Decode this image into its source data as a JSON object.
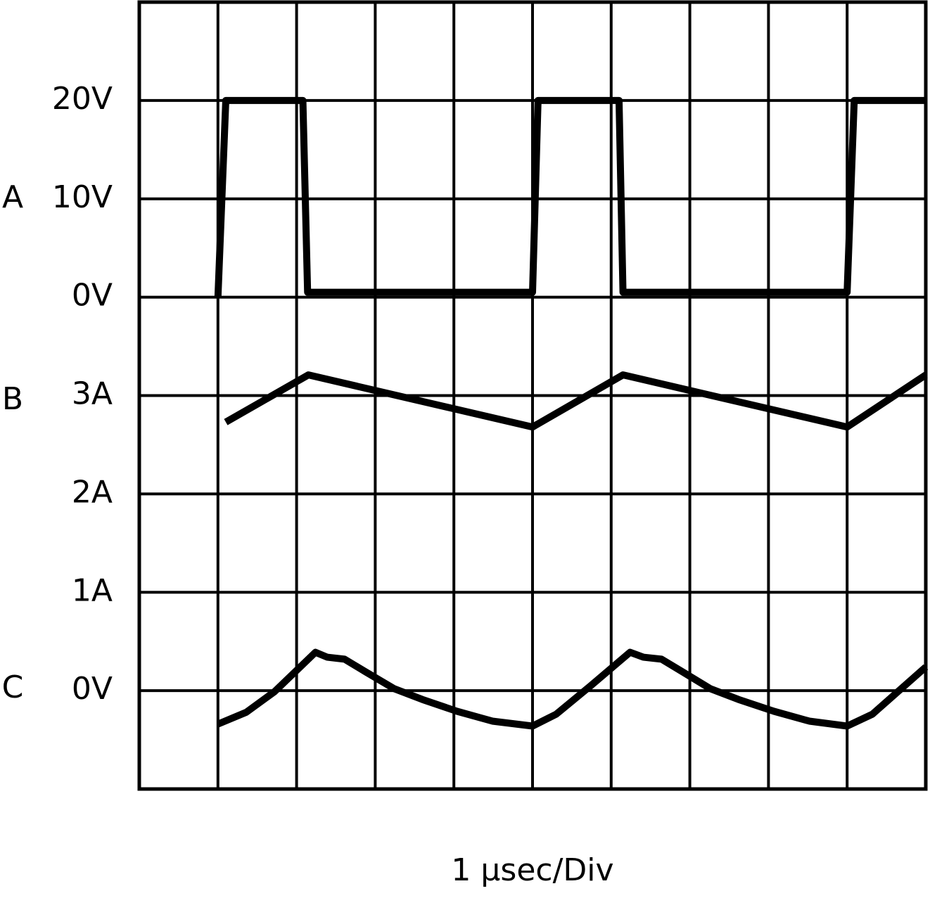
{
  "chart_data": {
    "type": "line",
    "xlabel": "1 μsec/Div",
    "xlim": [
      0,
      10
    ],
    "xticks": [
      0,
      1,
      2,
      3,
      4,
      5,
      6,
      7,
      8,
      9,
      10
    ],
    "ylim": [
      0,
      8
    ],
    "yticks": [
      {
        "value": 7,
        "label": "20V"
      },
      {
        "value": 6,
        "label": "10V"
      },
      {
        "value": 5,
        "label": "0V"
      },
      {
        "value": 4,
        "label": "3A"
      },
      {
        "value": 3,
        "label": "2A"
      },
      {
        "value": 2,
        "label": "1A"
      },
      {
        "value": 1,
        "label": "0V"
      }
    ],
    "grid": true,
    "series": [
      {
        "name": "A",
        "color": "#000000",
        "x": [
          1.0,
          1.1,
          2.08,
          2.14,
          5.0,
          5.07,
          6.1,
          6.15,
          9.0,
          9.09,
          10.0
        ],
        "values": [
          5.0,
          7.0,
          7.0,
          5.05,
          5.05,
          7.0,
          7.0,
          5.05,
          5.05,
          7.0,
          7.0
        ]
      },
      {
        "name": "B",
        "color": "#000000",
        "x": [
          1.1,
          2.15,
          5.0,
          6.15,
          9.0,
          10.0
        ],
        "values": [
          3.73,
          4.21,
          3.68,
          4.21,
          3.68,
          4.21
        ]
      },
      {
        "name": "C",
        "color": "#000000",
        "x": [
          1.0,
          1.36,
          1.72,
          2.24,
          2.39,
          2.61,
          2.88,
          3.24,
          3.6,
          4.04,
          4.49,
          5.0,
          5.3,
          5.74,
          6.24,
          6.41,
          6.64,
          6.91,
          7.26,
          7.62,
          8.07,
          8.52,
          9.0,
          9.32,
          10.0
        ],
        "values": [
          0.66,
          0.78,
          0.99,
          1.39,
          1.34,
          1.32,
          1.19,
          1.02,
          0.91,
          0.79,
          0.69,
          0.64,
          0.76,
          1.05,
          1.39,
          1.34,
          1.32,
          1.19,
          1.02,
          0.91,
          0.79,
          0.69,
          0.64,
          0.76,
          1.24
        ]
      }
    ]
  }
}
